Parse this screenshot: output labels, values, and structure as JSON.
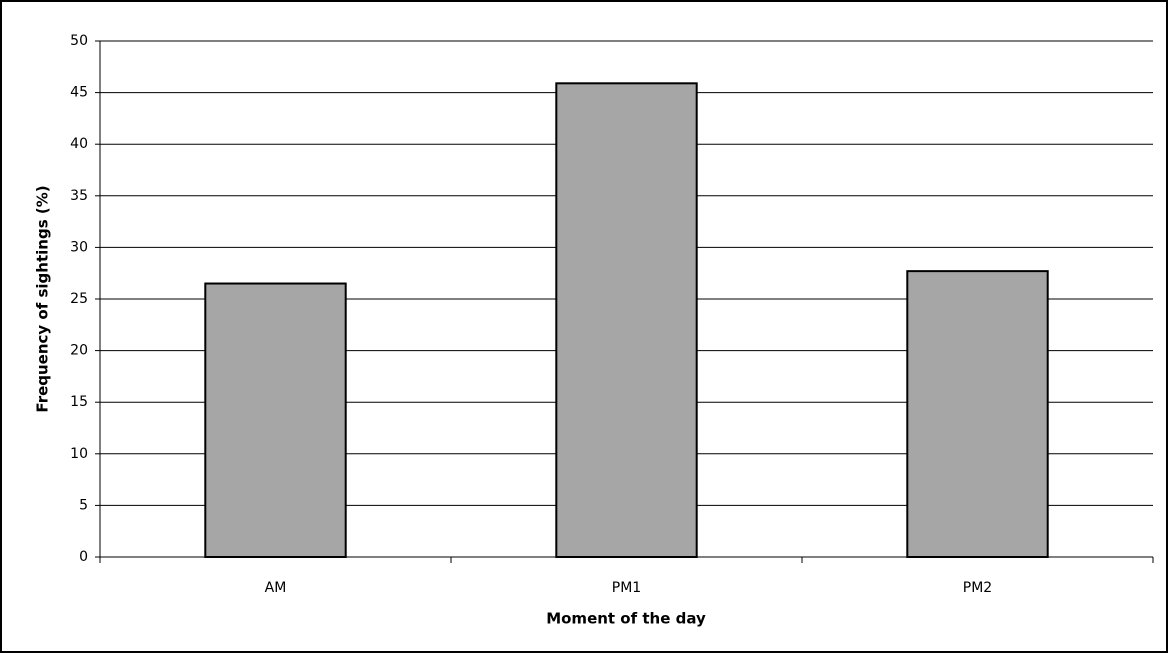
{
  "chart_data": {
    "type": "bar",
    "x_label": "Moment of the day",
    "y_label": "Frequency of sightings (%)",
    "categories": [
      "AM",
      "PM1",
      "PM2"
    ],
    "values": [
      26.5,
      45.9,
      27.7
    ],
    "color": "#a6a6a6",
    "ylim": [
      0,
      50
    ],
    "yticks": [
      0,
      5,
      10,
      15,
      20,
      25,
      30,
      35,
      40,
      45,
      50
    ],
    "grid": true
  }
}
